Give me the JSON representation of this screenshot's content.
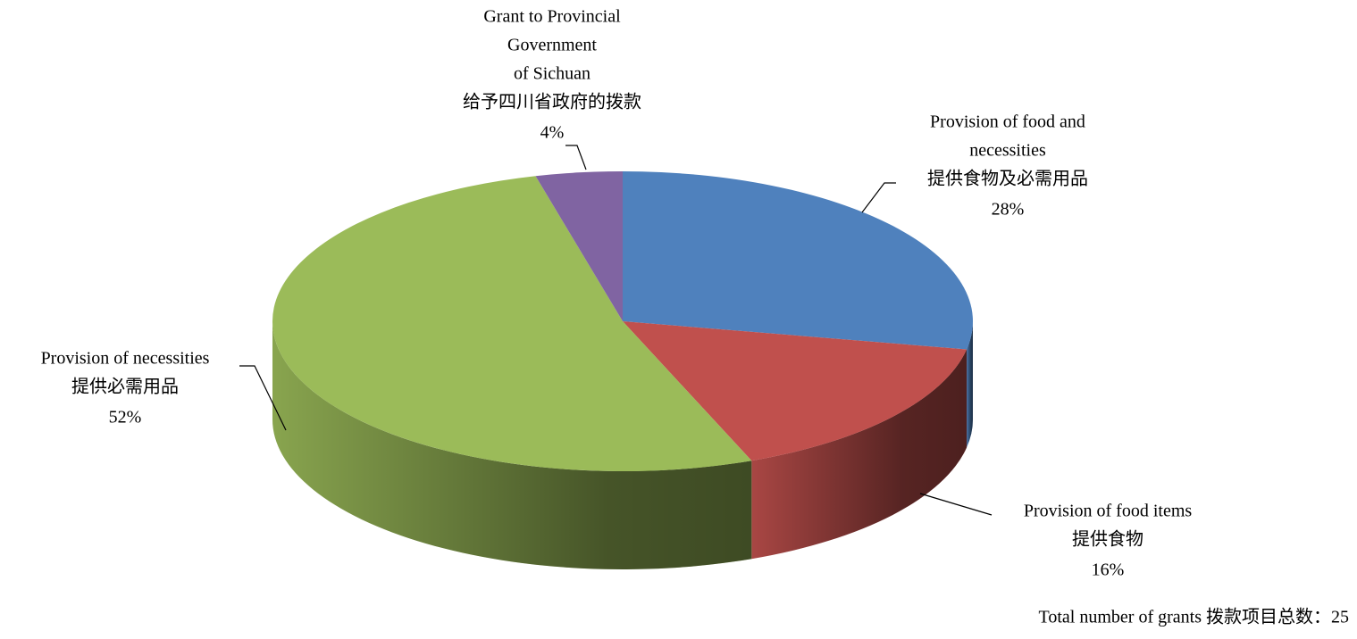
{
  "chart_data": {
    "type": "pie3d",
    "categories": [
      [
        "Provision of food and",
        "necessities",
        "提供食物及必需用品"
      ],
      [
        "Provision of food items",
        "提供食物"
      ],
      [
        "Provision of necessities",
        "提供必需用品"
      ],
      [
        "Grant to Provincial",
        "Government",
        "of Sichuan",
        "给予四川省政府的拨款"
      ]
    ],
    "values": [
      28,
      16,
      52,
      4
    ],
    "value_labels": [
      "28%",
      "16%",
      "52%",
      "4%"
    ],
    "colors": [
      "#4f81bd",
      "#c0504d",
      "#9bbb59",
      "#8064a2"
    ],
    "note": "Total number of grants 拨款项目总数：25"
  }
}
